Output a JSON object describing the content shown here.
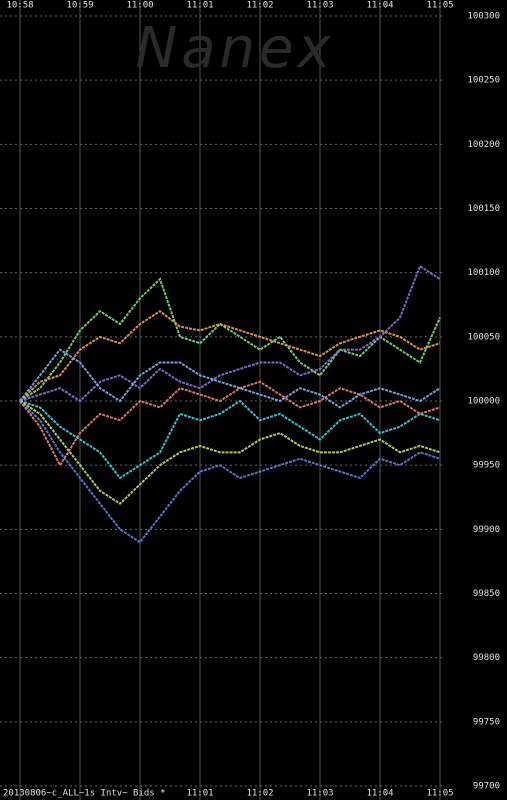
{
  "chart_data": {
    "type": "line",
    "watermark": "Nanex",
    "footer": "20130806~c_ALL~1s Intv~ Bids *",
    "categories": [
      "10:58",
      null,
      null,
      "10:59",
      null,
      null,
      "11:00",
      null,
      null,
      "11:01",
      null,
      null,
      "11:02",
      null,
      null,
      "11:03",
      null,
      null,
      "11:04",
      null,
      null,
      "11:05"
    ],
    "ylim": [
      99700,
      100300
    ],
    "yticks": [
      99700,
      99750,
      99800,
      99850,
      99900,
      99950,
      100000,
      100050,
      100100,
      100150,
      100200,
      100250,
      100300
    ],
    "grid": true,
    "series": [
      {
        "color": "#7ae07a",
        "values": [
          100000,
          100010,
          100030,
          100055,
          100070,
          100060,
          100080,
          100095,
          100050,
          100045,
          100060,
          100050,
          100040,
          100050,
          100030,
          100020,
          100040,
          100035,
          100050,
          100040,
          100030,
          100065
        ]
      },
      {
        "color": "#40d0e0",
        "values": [
          100000,
          99995,
          99980,
          99970,
          99960,
          99940,
          99950,
          99960,
          99990,
          99985,
          99990,
          100000,
          99985,
          99990,
          99980,
          99970,
          99985,
          99990,
          99975,
          99980,
          99990,
          99985
        ]
      },
      {
        "color": "#f0a050",
        "values": [
          100000,
          100015,
          100020,
          100040,
          100050,
          100045,
          100060,
          100070,
          100058,
          100055,
          100060,
          100055,
          100050,
          100045,
          100040,
          100035,
          100045,
          100050,
          100055,
          100050,
          100040,
          100045
        ]
      },
      {
        "color": "#9070e0",
        "values": [
          100000,
          100005,
          100010,
          100000,
          100015,
          100020,
          100010,
          100025,
          100015,
          100010,
          100020,
          100025,
          100030,
          100030,
          100020,
          100025,
          100040,
          100040,
          100050,
          100065,
          100105,
          100095
        ]
      },
      {
        "color": "#6080e0",
        "values": [
          100000,
          99985,
          99960,
          99940,
          99920,
          99900,
          99890,
          99910,
          99930,
          99945,
          99950,
          99940,
          99945,
          99950,
          99955,
          99950,
          99945,
          99940,
          99955,
          99950,
          99960,
          99955
        ]
      },
      {
        "color": "#c0e060",
        "values": [
          100000,
          99990,
          99970,
          99950,
          99930,
          99920,
          99935,
          99950,
          99960,
          99965,
          99960,
          99960,
          99970,
          99975,
          99965,
          99960,
          99960,
          99965,
          99970,
          99960,
          99965,
          99960
        ]
      },
      {
        "color": "#f08080",
        "values": [
          100000,
          99980,
          99950,
          99975,
          99990,
          99985,
          100000,
          99995,
          100010,
          100005,
          100000,
          100010,
          100015,
          100005,
          99995,
          100000,
          100010,
          100005,
          99995,
          100000,
          99990,
          99995
        ]
      },
      {
        "color": "#80b0f0",
        "values": [
          100000,
          100020,
          100040,
          100030,
          100010,
          100000,
          100020,
          100030,
          100030,
          100020,
          100015,
          100010,
          100005,
          100000,
          100010,
          100005,
          99995,
          100005,
          100010,
          100005,
          100000,
          100010
        ]
      }
    ]
  }
}
